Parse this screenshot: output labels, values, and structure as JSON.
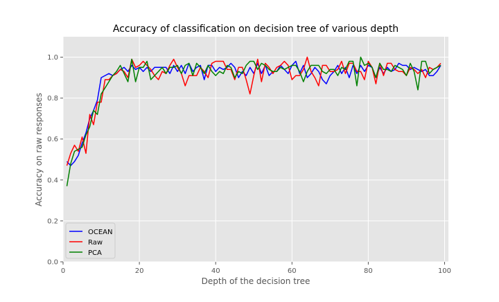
{
  "chart_data": {
    "type": "line",
    "title": "Accuracy of classification on decision tree of various depth",
    "xlabel": "Depth of the decision tree",
    "ylabel": "Accuracy on raw responses",
    "xlim": [
      0,
      101
    ],
    "ylim": [
      0.0,
      1.1
    ],
    "x_ticks": [
      0,
      20,
      40,
      60,
      80,
      100
    ],
    "y_ticks": [
      0.0,
      0.2,
      0.4,
      0.6,
      0.8,
      1.0
    ],
    "x_tick_labels": [
      "0",
      "20",
      "40",
      "60",
      "80",
      "100"
    ],
    "y_tick_labels": [
      "0.0",
      "0.2",
      "0.4",
      "0.6",
      "0.8",
      "1.0"
    ],
    "grid": true,
    "legend_position": "lower-left",
    "x": [
      1,
      2,
      3,
      4,
      5,
      6,
      7,
      8,
      9,
      10,
      11,
      12,
      13,
      14,
      15,
      16,
      17,
      18,
      19,
      20,
      21,
      22,
      23,
      24,
      25,
      26,
      27,
      28,
      29,
      30,
      31,
      32,
      33,
      34,
      35,
      36,
      37,
      38,
      39,
      40,
      41,
      42,
      43,
      44,
      45,
      46,
      47,
      48,
      49,
      50,
      51,
      52,
      53,
      54,
      55,
      56,
      57,
      58,
      59,
      60,
      61,
      62,
      63,
      64,
      65,
      66,
      67,
      68,
      69,
      70,
      71,
      72,
      73,
      74,
      75,
      76,
      77,
      78,
      79,
      80,
      81,
      82,
      83,
      84,
      85,
      86,
      87,
      88,
      89,
      90,
      91,
      92,
      93,
      94,
      95,
      96,
      97,
      98,
      99
    ],
    "series": [
      {
        "name": "OCEAN",
        "color": "#0000ff",
        "values": [
          0.49,
          0.47,
          0.49,
          0.52,
          0.58,
          0.63,
          0.7,
          0.74,
          0.79,
          0.9,
          0.91,
          0.92,
          0.91,
          0.92,
          0.94,
          0.95,
          0.93,
          0.96,
          0.94,
          0.95,
          0.93,
          0.95,
          0.93,
          0.95,
          0.95,
          0.95,
          0.95,
          0.92,
          0.96,
          0.93,
          0.96,
          0.92,
          0.97,
          0.93,
          0.95,
          0.96,
          0.89,
          0.96,
          0.96,
          0.93,
          0.95,
          0.94,
          0.95,
          0.97,
          0.95,
          0.9,
          0.93,
          0.91,
          0.95,
          0.92,
          0.97,
          0.92,
          0.96,
          0.91,
          0.93,
          0.93,
          0.96,
          0.94,
          0.92,
          0.96,
          0.98,
          0.92,
          0.96,
          0.9,
          0.92,
          0.95,
          0.93,
          0.89,
          0.87,
          0.91,
          0.93,
          0.96,
          0.92,
          0.95,
          0.9,
          0.96,
          0.92,
          0.96,
          0.93,
          0.96,
          0.95,
          0.9,
          0.95,
          0.92,
          0.95,
          0.93,
          0.94,
          0.97,
          0.96,
          0.96,
          0.94,
          0.95,
          0.94,
          0.93,
          0.94,
          0.91,
          0.91,
          0.93,
          0.96
        ]
      },
      {
        "name": "Raw",
        "color": "#ff0000",
        "values": [
          0.47,
          0.53,
          0.57,
          0.54,
          0.61,
          0.53,
          0.72,
          0.67,
          0.78,
          0.78,
          0.89,
          0.89,
          0.91,
          0.92,
          0.94,
          0.93,
          0.9,
          0.99,
          0.95,
          0.96,
          0.98,
          0.96,
          0.94,
          0.91,
          0.89,
          0.93,
          0.92,
          0.96,
          0.99,
          0.95,
          0.92,
          0.86,
          0.91,
          0.91,
          0.91,
          0.95,
          0.93,
          0.9,
          0.97,
          0.98,
          0.98,
          0.98,
          0.94,
          0.94,
          0.89,
          0.95,
          0.95,
          0.89,
          0.82,
          0.91,
          0.99,
          0.88,
          0.97,
          0.95,
          0.92,
          0.95,
          0.96,
          0.98,
          0.96,
          0.89,
          0.91,
          0.91,
          0.94,
          1.0,
          0.93,
          0.9,
          0.86,
          0.96,
          0.96,
          0.93,
          0.93,
          0.94,
          0.98,
          0.92,
          0.97,
          0.97,
          0.93,
          0.93,
          0.89,
          0.98,
          0.95,
          0.87,
          0.97,
          0.91,
          0.97,
          0.97,
          0.94,
          0.93,
          0.93,
          0.91,
          0.95,
          0.94,
          0.92,
          0.94,
          0.9,
          0.95,
          0.94,
          0.95,
          0.97
        ]
      },
      {
        "name": "PCA",
        "color": "#008000",
        "values": [
          0.37,
          0.48,
          0.54,
          0.55,
          0.56,
          0.62,
          0.66,
          0.74,
          0.72,
          0.82,
          0.85,
          0.88,
          0.91,
          0.93,
          0.96,
          0.92,
          0.88,
          0.99,
          0.88,
          0.95,
          0.95,
          0.98,
          0.89,
          0.91,
          0.93,
          0.95,
          0.92,
          0.95,
          0.95,
          0.96,
          0.92,
          0.96,
          0.97,
          0.91,
          0.97,
          0.95,
          0.92,
          0.96,
          0.93,
          0.91,
          0.93,
          0.92,
          0.96,
          0.95,
          0.9,
          0.93,
          0.92,
          0.96,
          0.98,
          0.98,
          0.94,
          0.97,
          0.96,
          0.94,
          0.93,
          0.93,
          0.95,
          0.94,
          0.95,
          0.96,
          0.96,
          0.93,
          0.88,
          0.93,
          0.96,
          0.96,
          0.96,
          0.93,
          0.92,
          0.94,
          0.94,
          0.91,
          0.95,
          0.94,
          0.98,
          0.98,
          0.86,
          1.0,
          0.96,
          0.97,
          0.95,
          0.9,
          0.97,
          0.94,
          0.94,
          0.93,
          0.96,
          0.95,
          0.94,
          0.91,
          0.97,
          0.93,
          0.84,
          0.98,
          0.98,
          0.92,
          0.94,
          0.95,
          0.96
        ]
      }
    ]
  }
}
